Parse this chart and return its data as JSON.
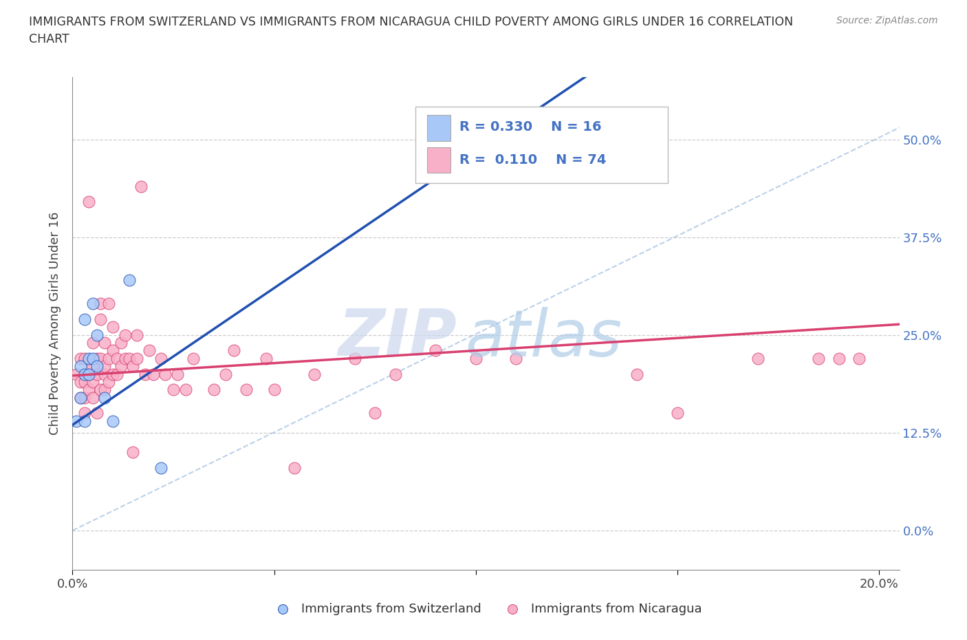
{
  "title_line1": "IMMIGRANTS FROM SWITZERLAND VS IMMIGRANTS FROM NICARAGUA CHILD POVERTY AMONG GIRLS UNDER 16 CORRELATION",
  "title_line2": "CHART",
  "source_text": "Source: ZipAtlas.com",
  "ylabel": "Child Poverty Among Girls Under 16",
  "xlim": [
    0.0,
    0.205
  ],
  "ylim": [
    -0.05,
    0.58
  ],
  "yticks": [
    0.0,
    0.125,
    0.25,
    0.375,
    0.5
  ],
  "ytick_labels": [
    "0.0%",
    "12.5%",
    "25.0%",
    "37.5%",
    "50.0%"
  ],
  "xticks": [
    0.0,
    0.05,
    0.1,
    0.15,
    0.2
  ],
  "xtick_labels": [
    "0.0%",
    "",
    "",
    "",
    "20.0%"
  ],
  "color_swiss": "#a8c8f8",
  "color_nica": "#f8b0c8",
  "trendline_swiss_color": "#2050b0",
  "trendline_nica_color": "#d84070",
  "legend_box_color": "#aaaaaa",
  "text_color_blue": "#4472c4",
  "R_swiss": 0.33,
  "N_swiss": 16,
  "R_nica": 0.11,
  "N_nica": 74,
  "swiss_x": [
    0.001,
    0.002,
    0.002,
    0.003,
    0.003,
    0.003,
    0.004,
    0.004,
    0.005,
    0.005,
    0.006,
    0.006,
    0.008,
    0.01,
    0.014,
    0.022
  ],
  "swiss_y": [
    0.14,
    0.17,
    0.21,
    0.14,
    0.27,
    0.2,
    0.22,
    0.2,
    0.22,
    0.29,
    0.21,
    0.25,
    0.17,
    0.14,
    0.32,
    0.08
  ],
  "nica_x": [
    0.001,
    0.002,
    0.002,
    0.002,
    0.003,
    0.003,
    0.003,
    0.003,
    0.004,
    0.004,
    0.004,
    0.004,
    0.005,
    0.005,
    0.005,
    0.005,
    0.006,
    0.006,
    0.006,
    0.007,
    0.007,
    0.007,
    0.007,
    0.008,
    0.008,
    0.008,
    0.008,
    0.009,
    0.009,
    0.009,
    0.01,
    0.01,
    0.01,
    0.011,
    0.011,
    0.012,
    0.012,
    0.013,
    0.013,
    0.014,
    0.015,
    0.015,
    0.016,
    0.016,
    0.017,
    0.018,
    0.019,
    0.02,
    0.022,
    0.023,
    0.025,
    0.026,
    0.028,
    0.03,
    0.035,
    0.038,
    0.04,
    0.043,
    0.048,
    0.05,
    0.055,
    0.06,
    0.07,
    0.075,
    0.08,
    0.09,
    0.1,
    0.11,
    0.14,
    0.15,
    0.17,
    0.185,
    0.19,
    0.195
  ],
  "nica_y": [
    0.2,
    0.17,
    0.19,
    0.22,
    0.15,
    0.19,
    0.22,
    0.17,
    0.2,
    0.18,
    0.2,
    0.42,
    0.19,
    0.21,
    0.24,
    0.17,
    0.2,
    0.15,
    0.22,
    0.29,
    0.27,
    0.22,
    0.18,
    0.2,
    0.18,
    0.21,
    0.24,
    0.22,
    0.29,
    0.19,
    0.2,
    0.23,
    0.26,
    0.2,
    0.22,
    0.21,
    0.24,
    0.22,
    0.25,
    0.22,
    0.21,
    0.1,
    0.22,
    0.25,
    0.44,
    0.2,
    0.23,
    0.2,
    0.22,
    0.2,
    0.18,
    0.2,
    0.18,
    0.22,
    0.18,
    0.2,
    0.23,
    0.18,
    0.22,
    0.18,
    0.08,
    0.2,
    0.22,
    0.15,
    0.2,
    0.23,
    0.22,
    0.22,
    0.2,
    0.15,
    0.22,
    0.22,
    0.22,
    0.22
  ],
  "trendline_slope_swiss": 3.5,
  "trendline_intercept_swiss": 0.135,
  "trendline_slope_nica": 0.32,
  "trendline_intercept_nica": 0.198,
  "diag_line_x": [
    0.0,
    0.205
  ],
  "diag_line_y": [
    0.0,
    0.515
  ]
}
